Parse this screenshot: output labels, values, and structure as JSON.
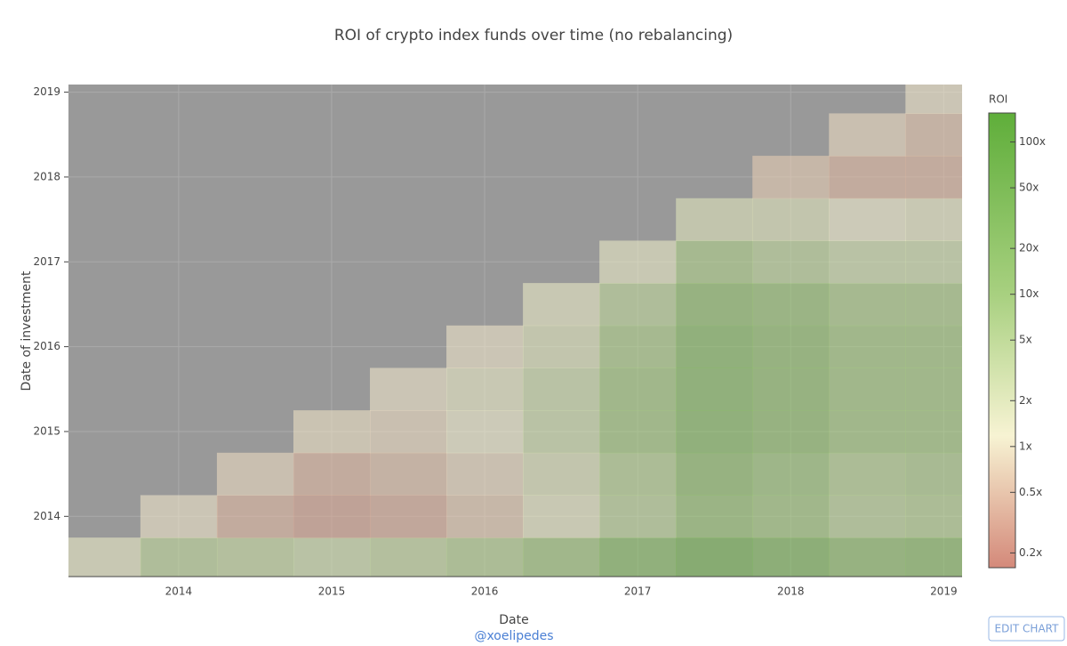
{
  "chart_data": {
    "type": "heatmap",
    "title": "ROI of crypto index funds over time (no rebalancing)",
    "x_label": "Date",
    "y_label": "Date of investment",
    "colorbar_title": "ROI",
    "x": [
      2013.5,
      2014,
      2014.5,
      2015,
      2015.5,
      2016,
      2016.5,
      2017,
      2017.5,
      2018,
      2018.5,
      2019
    ],
    "y": [
      2013.5,
      2014,
      2014.5,
      2015,
      2015.5,
      2016,
      2016.5,
      2017,
      2017.5,
      2018,
      2018.5,
      2019
    ],
    "z": [
      [
        1.5,
        5,
        4,
        3,
        4,
        6,
        10,
        30,
        60,
        40,
        20,
        25
      ],
      [
        null,
        1,
        0.4,
        0.3,
        0.35,
        0.6,
        1.5,
        5,
        15,
        10,
        5,
        6
      ],
      [
        null,
        null,
        0.8,
        0.4,
        0.5,
        0.8,
        2,
        6,
        20,
        12,
        6,
        7
      ],
      [
        null,
        null,
        null,
        0.9,
        0.8,
        1.2,
        3,
        10,
        30,
        20,
        10,
        10
      ],
      [
        null,
        null,
        null,
        null,
        1,
        1.5,
        3,
        10,
        30,
        20,
        10,
        10
      ],
      [
        null,
        null,
        null,
        null,
        null,
        1,
        2,
        8,
        30,
        20,
        10,
        10
      ],
      [
        null,
        null,
        null,
        null,
        null,
        null,
        1.5,
        5,
        20,
        15,
        8,
        8
      ],
      [
        null,
        null,
        null,
        null,
        null,
        null,
        null,
        1.5,
        8,
        5,
        3,
        3
      ],
      [
        null,
        null,
        null,
        null,
        null,
        null,
        null,
        null,
        2,
        2,
        1.2,
        1.5
      ],
      [
        null,
        null,
        null,
        null,
        null,
        null,
        null,
        null,
        null,
        0.6,
        0.4,
        0.4
      ],
      [
        null,
        null,
        null,
        null,
        null,
        null,
        null,
        null,
        null,
        null,
        0.8,
        0.5
      ],
      [
        null,
        null,
        null,
        null,
        null,
        null,
        null,
        null,
        null,
        null,
        null,
        1
      ]
    ],
    "xlim": [
      2013.28,
      2019.12
    ],
    "xticks": [
      2014,
      2015,
      2016,
      2017,
      2018,
      2019
    ],
    "ylim": [
      2013.29,
      2019.09
    ],
    "yticks": [
      2014,
      2015,
      2016,
      2017,
      2018,
      2019
    ],
    "zlim": [
      0.16,
      155
    ],
    "log_color_scale": true,
    "zticks": [
      {
        "value": 0.2,
        "label": "0.2x"
      },
      {
        "value": 0.5,
        "label": "0.5x"
      },
      {
        "value": 1,
        "label": "1x"
      },
      {
        "value": 2,
        "label": "2x"
      },
      {
        "value": 5,
        "label": "5x"
      },
      {
        "value": 10,
        "label": "10x"
      },
      {
        "value": 20,
        "label": "20x"
      },
      {
        "value": 50,
        "label": "50x"
      },
      {
        "value": 100,
        "label": "100x"
      }
    ],
    "colorscale": [
      [
        0,
        "#d4897a"
      ],
      [
        0.29,
        "#f7f3d3"
      ],
      [
        0.6,
        "#a8d080"
      ],
      [
        1,
        "#5fae3a"
      ]
    ],
    "background_color": "#999999",
    "grid": true
  },
  "credit": "@xoelipedes",
  "edit_button": "EDIT CHART"
}
